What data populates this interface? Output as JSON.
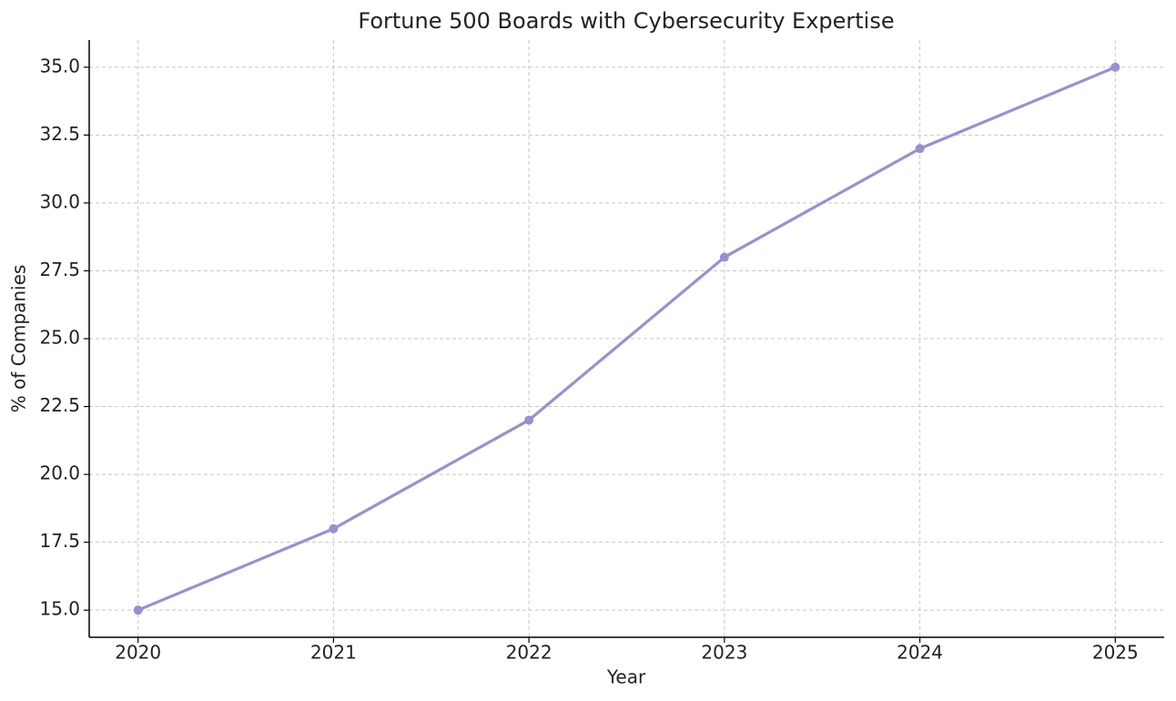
{
  "chart_data": {
    "type": "line",
    "title": "Fortune 500 Boards with Cybersecurity Expertise",
    "x_label": "Year",
    "y_label": "% of Companies",
    "x": [
      2020,
      2021,
      2022,
      2023,
      2024,
      2025
    ],
    "series": [
      {
        "color": "#9a8fd0",
        "values": [
          15,
          18,
          22,
          28,
          32,
          35
        ]
      }
    ],
    "xlim": [
      2019.75,
      2025.25
    ],
    "xticks": [
      2020,
      2021,
      2022,
      2023,
      2024,
      2025
    ],
    "ylim": [
      14,
      36
    ],
    "yticks": [
      {
        "value": 15,
        "label": "15.0"
      },
      17.5,
      {
        "value": 20,
        "label": "20.0"
      },
      22.5,
      {
        "value": 25,
        "label": "25.0"
      },
      27.5,
      {
        "value": 30,
        "label": "30.0"
      },
      32.5,
      {
        "value": 35,
        "label": "35.0"
      }
    ],
    "grid": true
  }
}
